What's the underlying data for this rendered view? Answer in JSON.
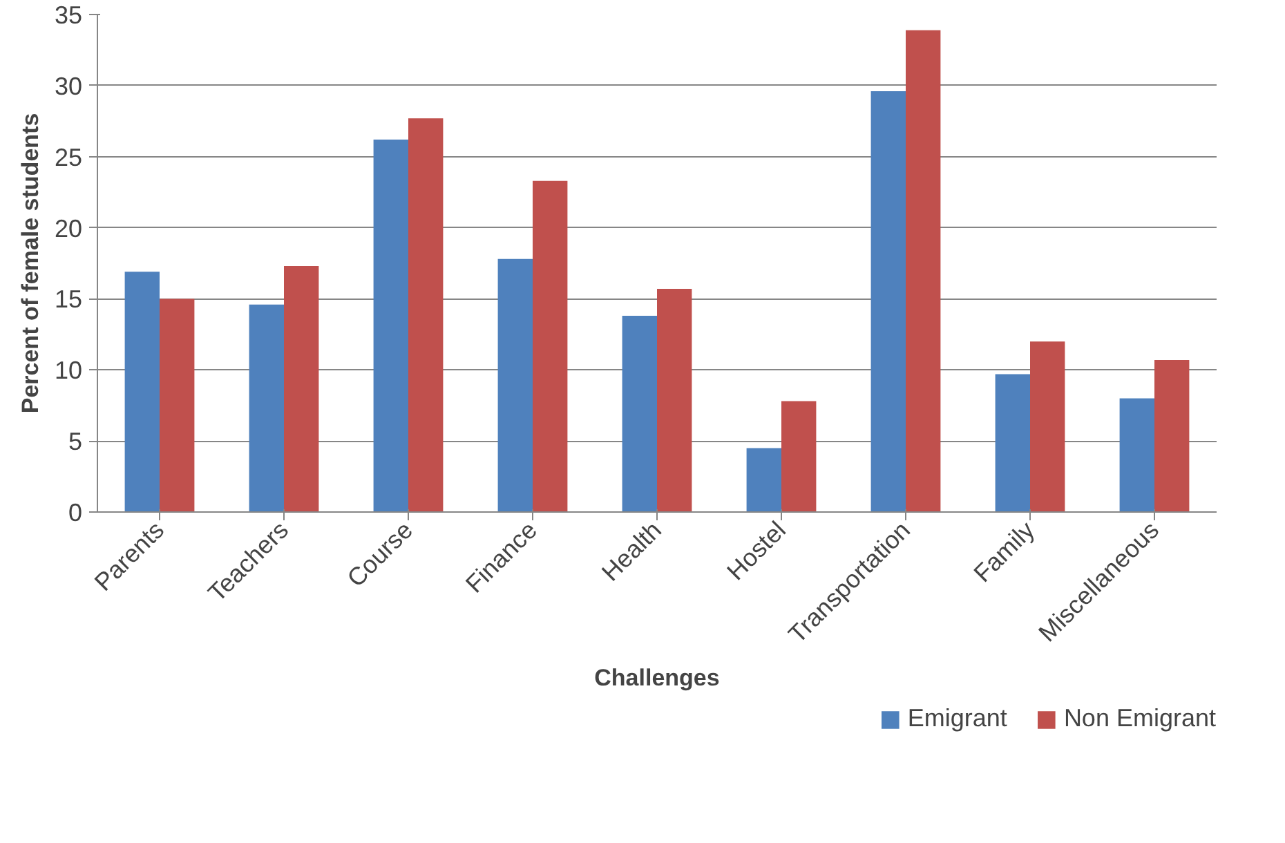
{
  "chart_data": {
    "type": "bar",
    "xlabel": "Challenges",
    "ylabel": "Percent of female students",
    "categories": [
      "Parents",
      "Teachers",
      "Course",
      "Finance",
      "Health",
      "Hostel",
      "Transportation",
      "Family",
      "Miscellaneous"
    ],
    "series": [
      {
        "name": "Emigrant",
        "color": "#4f81bd",
        "values": [
          16.9,
          14.6,
          26.2,
          17.8,
          13.8,
          4.5,
          29.6,
          9.7,
          8.0
        ]
      },
      {
        "name": "Non Emigrant",
        "color": "#c0504d",
        "values": [
          15.0,
          17.3,
          27.7,
          23.3,
          15.7,
          7.8,
          33.9,
          12.0,
          10.7
        ]
      }
    ],
    "ylim": [
      0,
      35
    ],
    "yticks": [
      0,
      5,
      10,
      15,
      20,
      25,
      30,
      35
    ],
    "grid": "y",
    "legend": "bottom right"
  }
}
